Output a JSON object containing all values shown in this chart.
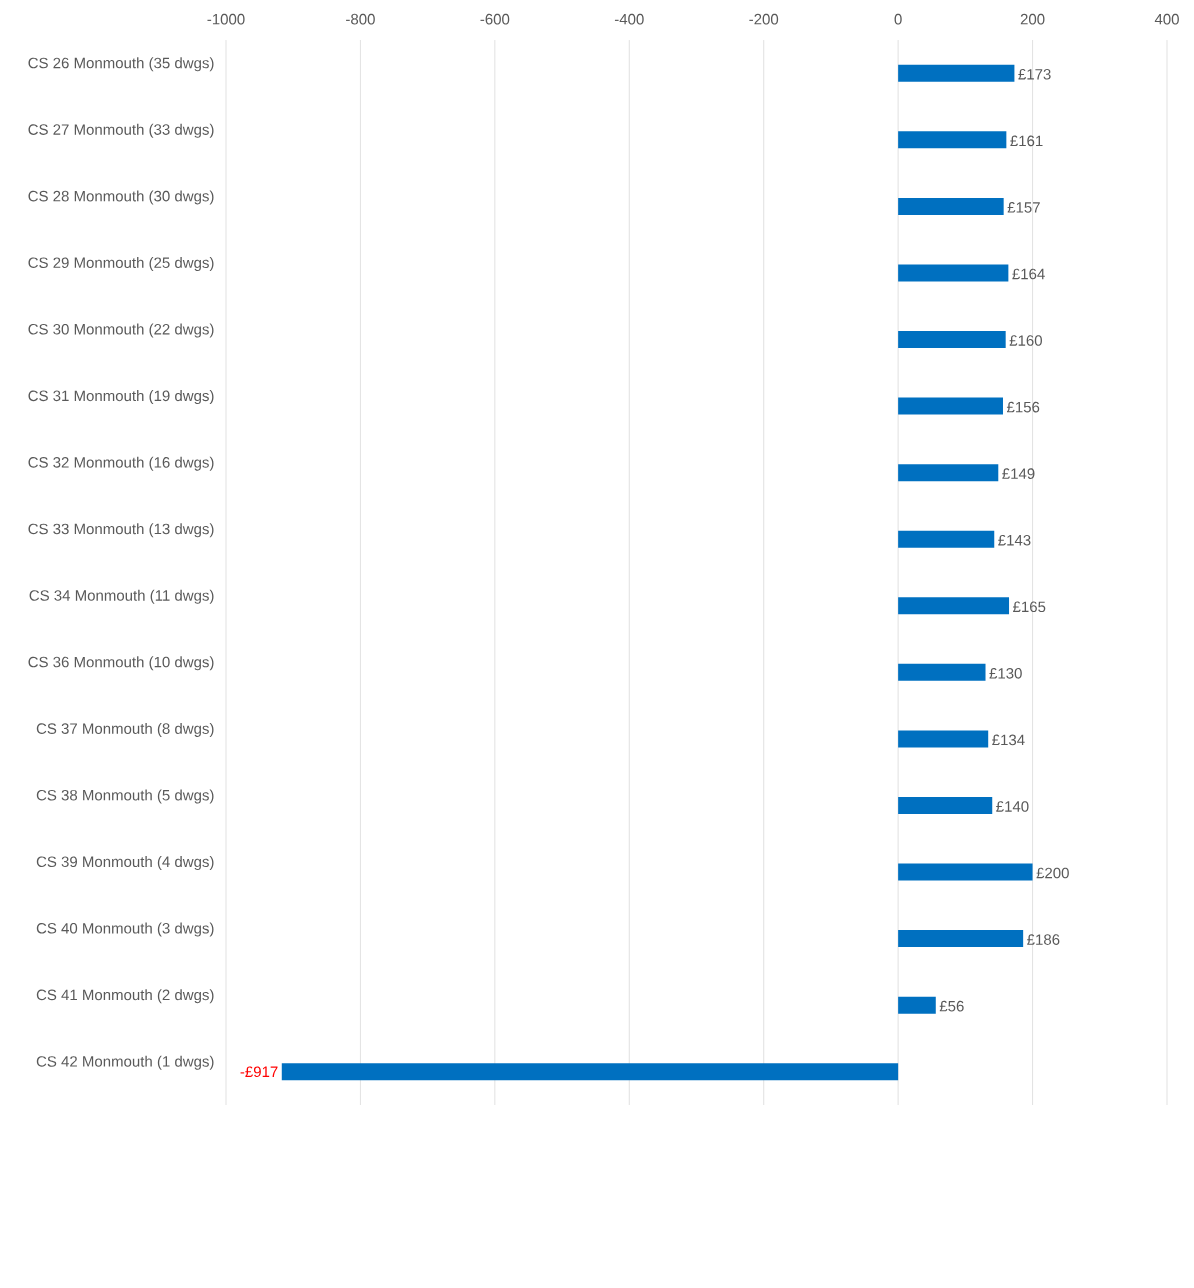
{
  "chart_data": {
    "type": "bar",
    "orientation": "horizontal",
    "categories": [
      "CS 26 Monmouth (35 dwgs)",
      "CS 27 Monmouth (33 dwgs)",
      "CS 28 Monmouth (30 dwgs)",
      "CS 29 Monmouth (25 dwgs)",
      "CS 30 Monmouth (22 dwgs)",
      "CS 31 Monmouth (19 dwgs)",
      "CS 32 Monmouth (16 dwgs)",
      "CS 33 Monmouth (13 dwgs)",
      "CS 34 Monmouth (11 dwgs)",
      "CS 36 Monmouth (10 dwgs)",
      "CS 37 Monmouth (8 dwgs)",
      "CS 38 Monmouth (5 dwgs)",
      "CS 39 Monmouth (4 dwgs)",
      "CS 40 Monmouth (3 dwgs)",
      "CS 41 Monmouth (2 dwgs)",
      "CS 42 Monmouth (1 dwgs)"
    ],
    "values": [
      173,
      161,
      157,
      164,
      160,
      156,
      149,
      143,
      165,
      130,
      134,
      140,
      200,
      186,
      56,
      -917
    ],
    "value_labels": [
      "£173",
      "£161",
      "£157",
      "£164",
      "£160",
      "£156",
      "£149",
      "£143",
      "£165",
      "£130",
      "£134",
      "£140",
      "£200",
      "£186",
      "£56",
      "-£917"
    ],
    "color": "#0070c0",
    "xlim": [
      -1000,
      400
    ],
    "xticks": [
      -1000,
      -800,
      -600,
      -400,
      -200,
      0,
      200,
      400
    ],
    "grid": "x"
  }
}
